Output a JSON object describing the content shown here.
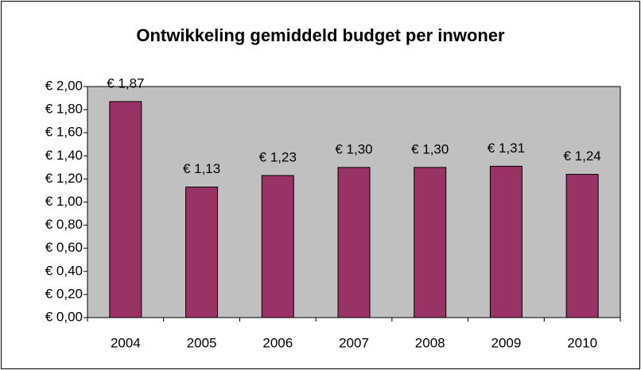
{
  "chart_data": {
    "type": "bar",
    "title": "Ontwikkeling gemiddeld budget per inwoner",
    "categories": [
      "2004",
      "2005",
      "2006",
      "2007",
      "2008",
      "2009",
      "2010"
    ],
    "values": [
      1.87,
      1.13,
      1.23,
      1.3,
      1.3,
      1.31,
      1.24
    ],
    "value_labels": [
      "€ 1,87",
      "€ 1,13",
      "€ 1,23",
      "€ 1,30",
      "€ 1,30",
      "€ 1,31",
      "€ 1,24"
    ],
    "color": "#993366",
    "plot_background": "#c0c0c0",
    "ylim": [
      0,
      2
    ],
    "yticks": [
      {
        "value": 0,
        "label": "€ 0,00"
      },
      {
        "value": 0.2,
        "label": "€ 0,20"
      },
      {
        "value": 0.4,
        "label": "€ 0,40"
      },
      {
        "value": 0.6,
        "label": "€ 0,60"
      },
      {
        "value": 0.8,
        "label": "€ 0,80"
      },
      {
        "value": 1.0,
        "label": "€ 1,00"
      },
      {
        "value": 1.2,
        "label": "€ 1,20"
      },
      {
        "value": 1.4,
        "label": "€ 1,40"
      },
      {
        "value": 1.6,
        "label": "€ 1,60"
      },
      {
        "value": 1.8,
        "label": "€ 1,80"
      },
      {
        "value": 2.0,
        "label": "€ 2,00"
      }
    ],
    "grid": false
  }
}
